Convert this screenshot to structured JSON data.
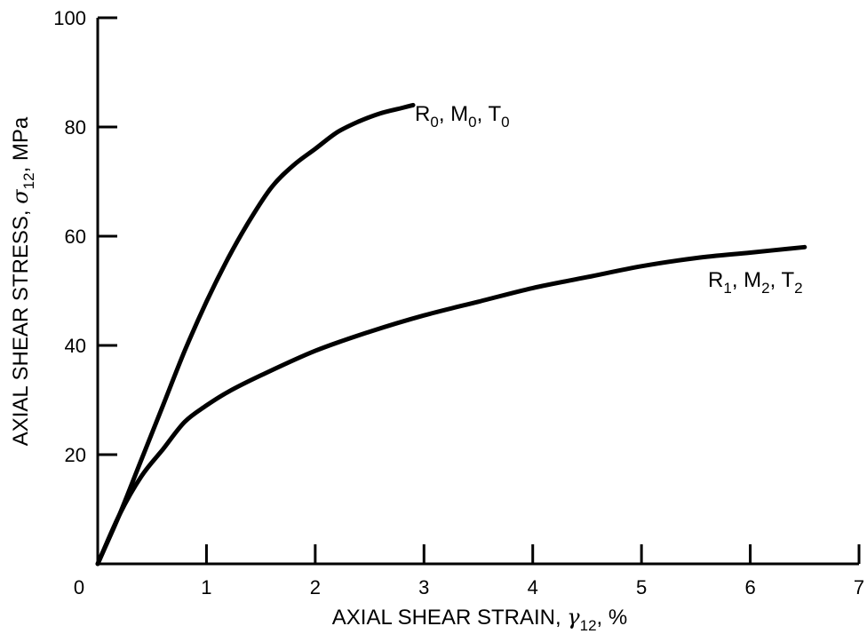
{
  "chart_data": {
    "type": "line",
    "xlabel": {
      "main": "AXIAL SHEAR STRAIN, ",
      "symbol": "γ",
      "subscript": "12",
      "suffix": ", %"
    },
    "ylabel": {
      "main": "AXIAL SHEAR STRESS, ",
      "symbol": "σ",
      "subscript": "12",
      "suffix": ", MPa"
    },
    "xlim": [
      0,
      7
    ],
    "ylim": [
      0,
      100
    ],
    "x_ticks": [
      0,
      1,
      2,
      3,
      4,
      5,
      6,
      7
    ],
    "x_tick_labels": [
      "0",
      "1",
      "2",
      "3",
      "4",
      "5",
      "6",
      "7"
    ],
    "y_ticks": [
      20,
      40,
      60,
      80,
      100
    ],
    "y_tick_labels": [
      "20",
      "40",
      "60",
      "80",
      "100"
    ],
    "grid": false,
    "series": [
      {
        "label_parts": [
          {
            "text": "R",
            "sub": "0"
          },
          {
            "text": ", M",
            "sub": "0"
          },
          {
            "text": ", T",
            "sub": "0"
          }
        ],
        "x": [
          0,
          0.2,
          0.4,
          0.6,
          0.8,
          1.0,
          1.2,
          1.4,
          1.6,
          1.8,
          2.0,
          2.2,
          2.4,
          2.6,
          2.8,
          2.9
        ],
        "y": [
          0,
          9,
          19,
          29,
          39,
          48,
          56,
          63,
          69,
          73,
          76,
          79,
          81,
          82.5,
          83.5,
          84
        ]
      },
      {
        "label_parts": [
          {
            "text": "R",
            "sub": "1"
          },
          {
            "text": ", M",
            "sub": "2"
          },
          {
            "text": ", T",
            "sub": "2"
          }
        ],
        "x": [
          0,
          0.2,
          0.4,
          0.6,
          0.8,
          1.0,
          1.2,
          1.5,
          2.0,
          2.5,
          3.0,
          3.5,
          4.0,
          4.5,
          5.0,
          5.5,
          6.0,
          6.5
        ],
        "y": [
          0,
          9,
          16,
          21,
          26,
          29,
          31.5,
          34.5,
          39,
          42.5,
          45.5,
          48,
          50.5,
          52.5,
          54.5,
          56,
          57,
          58
        ]
      }
    ]
  }
}
